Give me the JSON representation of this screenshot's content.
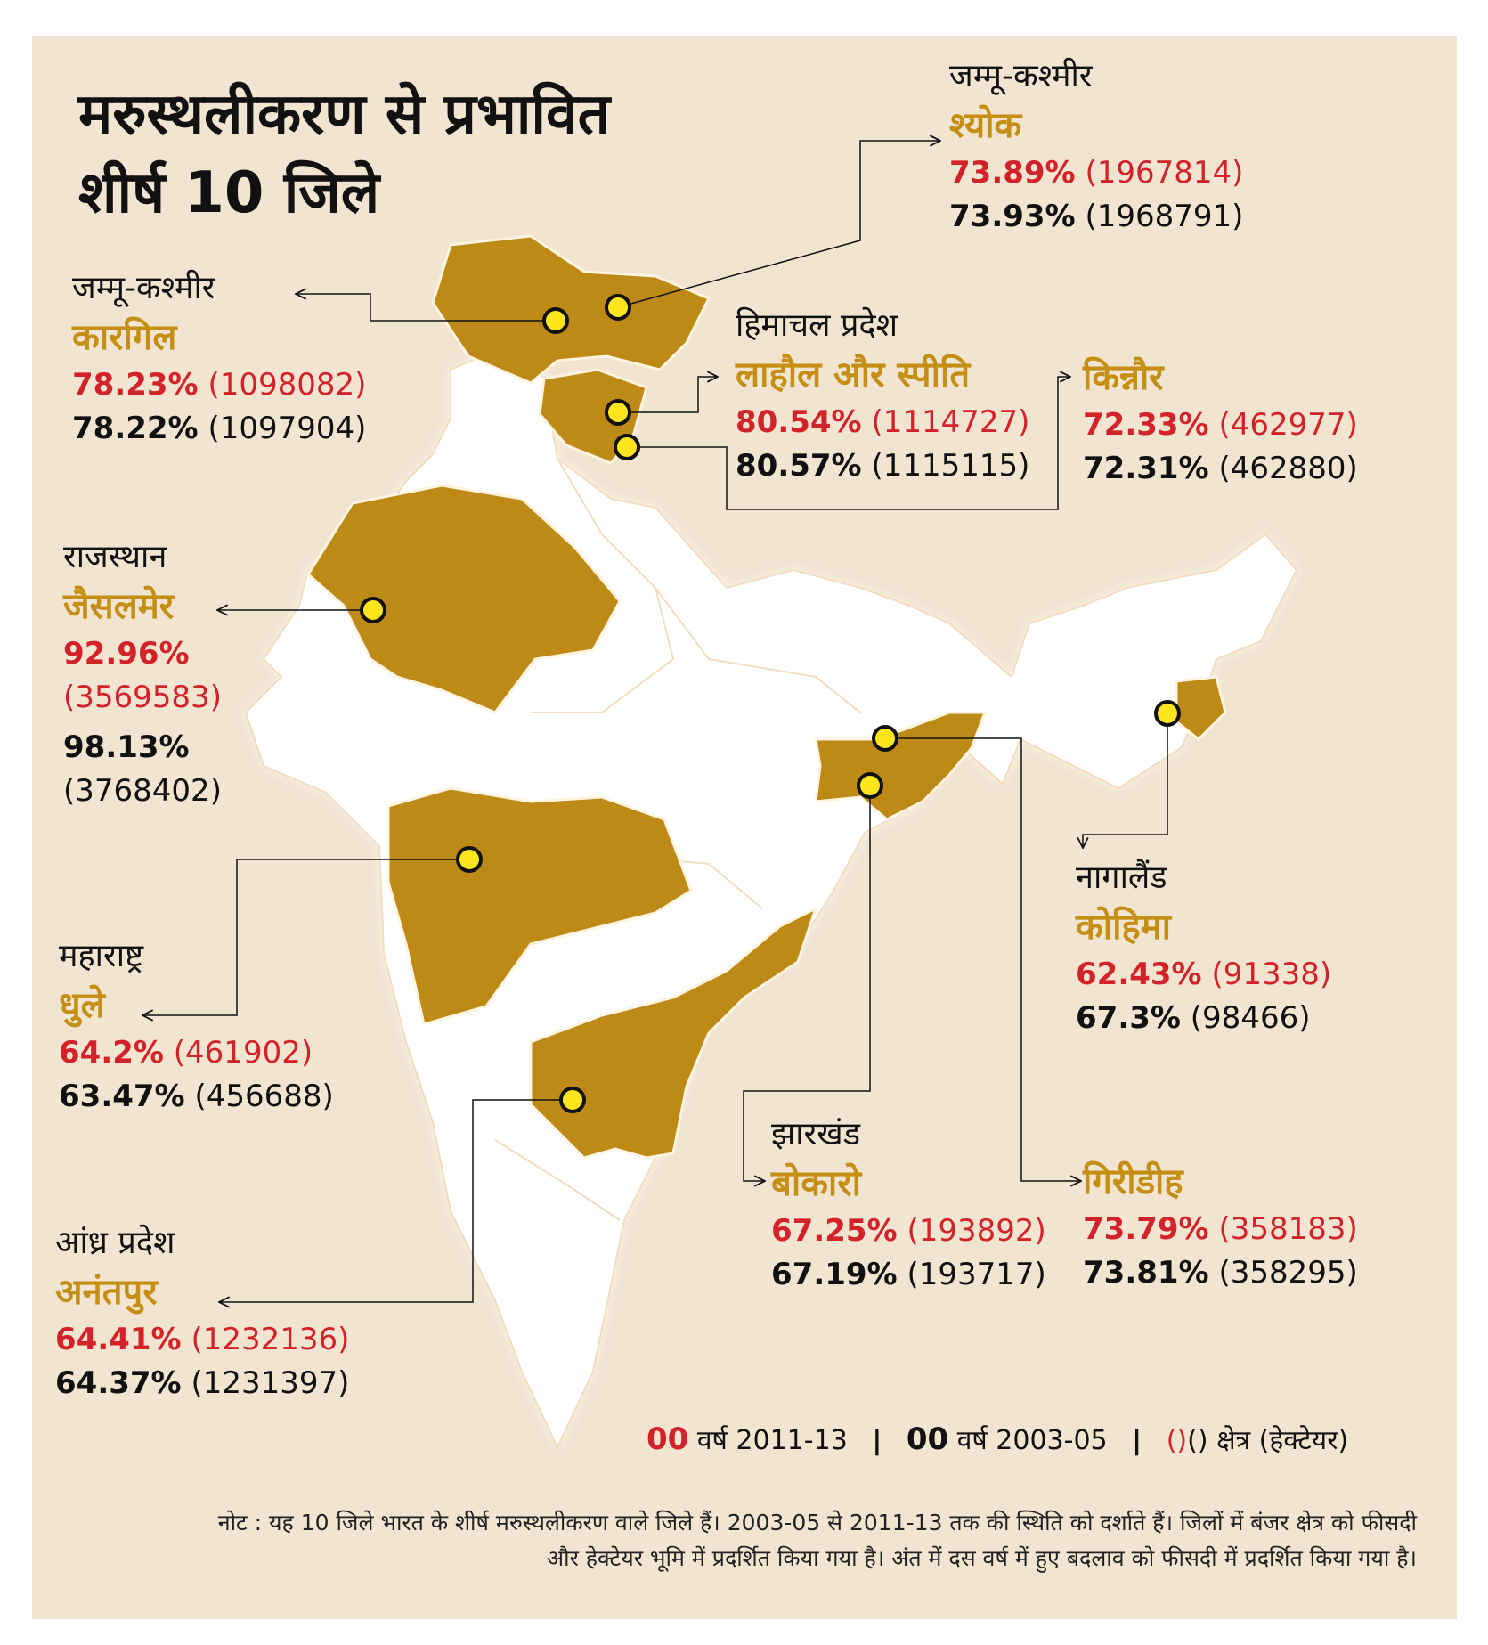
{
  "title_line1": "मरुस्थलीकरण से प्रभावित",
  "title_line2": "शीर्ष 10 जिले",
  "districts": [
    {
      "state": "जम्मू-कश्मीर",
      "name": "श्योक",
      "pct_2011_13": "73.89%",
      "area_2011_13": "(1967814)",
      "pct_2003_05": "73.93%",
      "area_2003_05": "(1968791)"
    },
    {
      "state": "जम्मू-कश्मीर",
      "name": "कारगिल",
      "pct_2011_13": "78.23%",
      "area_2011_13": "(1098082)",
      "pct_2003_05": "78.22%",
      "area_2003_05": "(1097904)"
    },
    {
      "state": "हिमाचल प्रदेश",
      "name": "लाहौल और स्पीति",
      "pct_2011_13": "80.54%",
      "area_2011_13": "(1114727)",
      "pct_2003_05": "80.57%",
      "area_2003_05": "(1115115)"
    },
    {
      "state": "",
      "name": "किन्नौर",
      "pct_2011_13": "72.33%",
      "area_2011_13": "(462977)",
      "pct_2003_05": "72.31%",
      "area_2003_05": "(462880)"
    },
    {
      "state": "राजस्थान",
      "name": "जैसलमेर",
      "pct_2011_13": "92.96%",
      "area_2011_13": "(3569583)",
      "pct_2003_05": "98.13%",
      "area_2003_05": "(3768402)"
    },
    {
      "state": "नागालैंड",
      "name": "कोहिमा",
      "pct_2011_13": "62.43%",
      "area_2011_13": "(91338)",
      "pct_2003_05": "67.3%",
      "area_2003_05": "(98466)"
    },
    {
      "state": "महाराष्ट्र",
      "name": "धुले",
      "pct_2011_13": "64.2%",
      "area_2011_13": "(461902)",
      "pct_2003_05": "63.47%",
      "area_2003_05": "(456688)"
    },
    {
      "state": "झारखंड",
      "name": "बोकारो",
      "pct_2011_13": "67.25%",
      "area_2011_13": "(193892)",
      "pct_2003_05": "67.19%",
      "area_2003_05": "(193717)"
    },
    {
      "state": "",
      "name": "गिरीडीह",
      "pct_2011_13": "73.79%",
      "area_2011_13": "(358183)",
      "pct_2003_05": "73.81%",
      "area_2003_05": "(358295)"
    },
    {
      "state": "आंध्र प्रदेश",
      "name": "अनंतपुर",
      "pct_2011_13": "64.41%",
      "area_2011_13": "(1232136)",
      "pct_2003_05": "64.37%",
      "area_2003_05": "(1231397)"
    }
  ],
  "legend": {
    "red_key": "00",
    "red_label": "वर्ष 2011-13",
    "black_key": "00",
    "black_label": "वर्ष 2003-05",
    "sep": "|",
    "paren_red": "()",
    "paren_black": "()",
    "paren_label": "क्षेत्र (हेक्टेयर)"
  },
  "note_line1": "नोट : यह 10 जिले भारत के शीर्ष मरुस्थलीकरण वाले जिले हैं। 2003-05 से 2011-13 तक की स्थिति को दर्शाते हैं। जिलों में बंजर क्षेत्र को फीसदी",
  "note_line2": "और हेक्टेयर भूमि में प्रदर्शित किया गया है। अंत में दस वर्ष में हुए बदलाव को फीसदी में प्रदर्शित किया गया है।",
  "colors": {
    "background": "#f1e4d1",
    "highlight_state": "#bd8a17",
    "country": "#ffffff",
    "marker": "#ffe51e",
    "red": "#d2232a",
    "district_label": "#c48f14"
  }
}
